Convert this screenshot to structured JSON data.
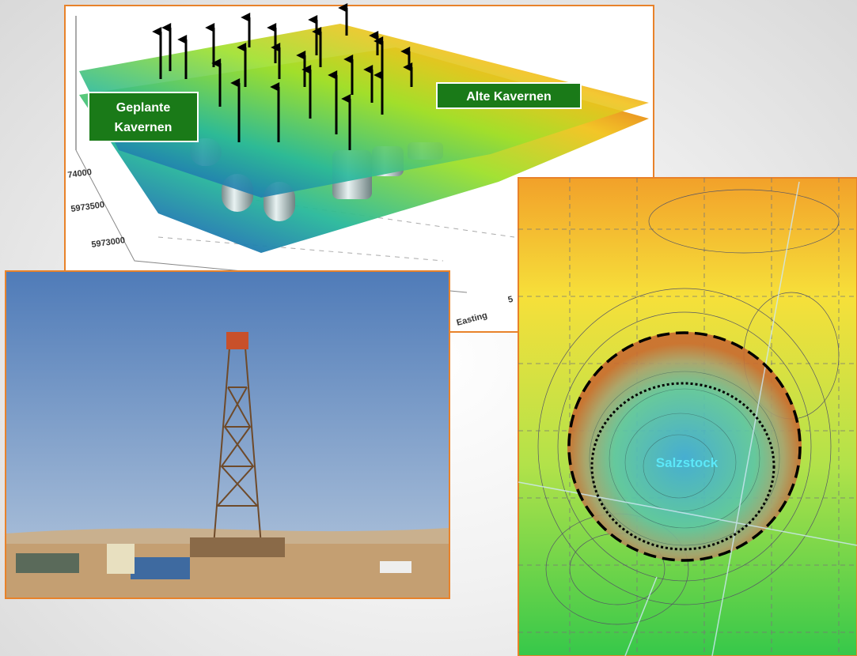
{
  "surface_3d": {
    "planned_label": [
      "Geplante",
      "Kavernen"
    ],
    "old_label": "Alte Kavernen",
    "axis_ticks": [
      "74000",
      "5973500",
      "5973000"
    ],
    "axis_partial": "5",
    "axis_title": "Easting"
  },
  "contour_map": {
    "label": "Salzstock"
  }
}
